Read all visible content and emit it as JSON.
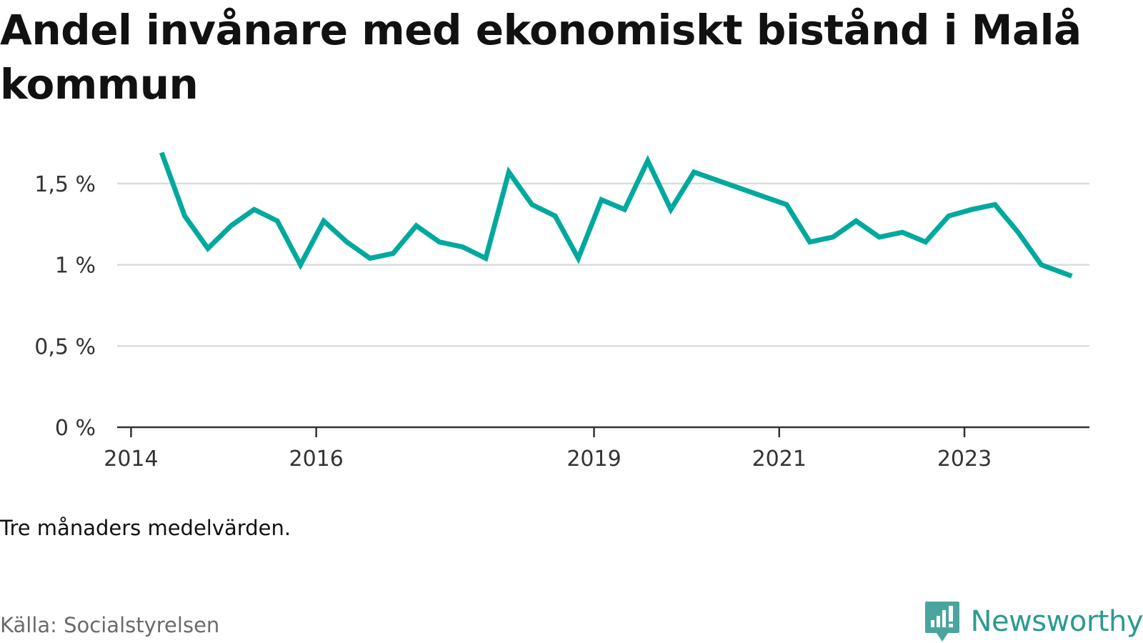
{
  "title": "Andel invånare med ekonomiskt bistånd i Malå kommun",
  "note": "Tre månaders medelvärden.",
  "source": "Källa: Socialstyrelsen",
  "brand": {
    "name": "Newsworthy",
    "logo_icon": "bar-chart-speech-bubble-icon",
    "color": "#2b9a92"
  },
  "chart_data": {
    "type": "line",
    "ylim": [
      0,
      1.75
    ],
    "xlim": [
      2013.85,
      2024.35
    ],
    "grid": true,
    "yticks": [
      {
        "value": 0,
        "label": "0 %"
      },
      {
        "value": 0.5,
        "label": "0,5 %"
      },
      {
        "value": 1,
        "label": "1 %"
      },
      {
        "value": 1.5,
        "label": "1,5 %"
      }
    ],
    "xticks": [
      {
        "value": 2014,
        "label": "2014"
      },
      {
        "value": 2016,
        "label": "2016"
      },
      {
        "value": 2019,
        "label": "2019"
      },
      {
        "value": 2021,
        "label": "2021"
      },
      {
        "value": 2023,
        "label": "2023"
      }
    ],
    "series": [
      {
        "color": "#00a99d",
        "points": [
          [
            2014.33,
            1.69
          ],
          [
            2014.58,
            1.3
          ],
          [
            2014.83,
            1.1
          ],
          [
            2015.08,
            1.24
          ],
          [
            2015.33,
            1.34
          ],
          [
            2015.58,
            1.27
          ],
          [
            2015.83,
            1.0
          ],
          [
            2016.08,
            1.27
          ],
          [
            2016.33,
            1.14
          ],
          [
            2016.58,
            1.04
          ],
          [
            2016.83,
            1.07
          ],
          [
            2017.08,
            1.24
          ],
          [
            2017.33,
            1.14
          ],
          [
            2017.58,
            1.11
          ],
          [
            2017.83,
            1.04
          ],
          [
            2018.08,
            1.57
          ],
          [
            2018.33,
            1.37
          ],
          [
            2018.58,
            1.3
          ],
          [
            2018.83,
            1.04
          ],
          [
            2019.08,
            1.4
          ],
          [
            2019.33,
            1.34
          ],
          [
            2019.58,
            1.64
          ],
          [
            2019.83,
            1.34
          ],
          [
            2020.08,
            1.57
          ],
          [
            2020.33,
            1.52
          ],
          [
            2020.58,
            1.47
          ],
          [
            2020.83,
            1.42
          ],
          [
            2021.08,
            1.37
          ],
          [
            2021.33,
            1.14
          ],
          [
            2021.58,
            1.17
          ],
          [
            2021.83,
            1.27
          ],
          [
            2022.08,
            1.17
          ],
          [
            2022.33,
            1.2
          ],
          [
            2022.58,
            1.14
          ],
          [
            2022.83,
            1.3
          ],
          [
            2023.08,
            1.34
          ],
          [
            2023.33,
            1.37
          ],
          [
            2023.58,
            1.2
          ],
          [
            2023.83,
            1.0
          ],
          [
            2024.16,
            0.93
          ]
        ]
      }
    ]
  }
}
